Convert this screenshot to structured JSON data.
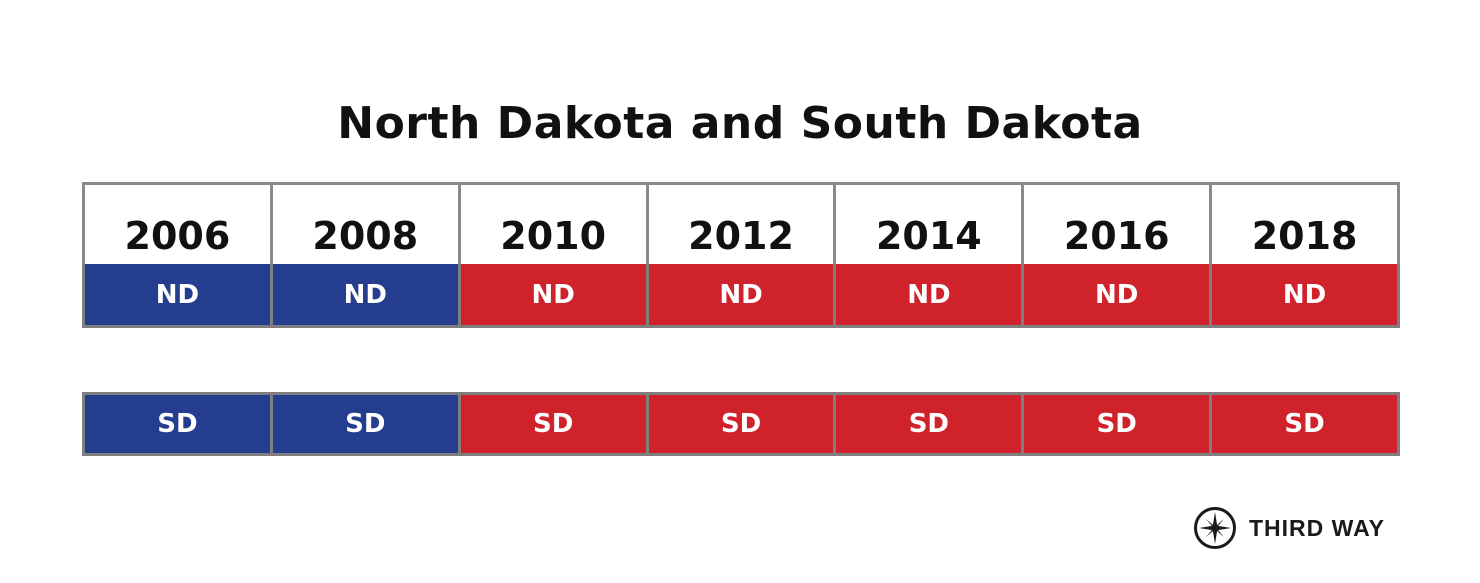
{
  "chart_data": {
    "type": "table",
    "title": "North Dakota and South Dakota",
    "columns": [
      "2006",
      "2008",
      "2010",
      "2012",
      "2014",
      "2016",
      "2018"
    ],
    "rows": [
      {
        "label": "ND",
        "cells": [
          "ND",
          "ND",
          "ND",
          "ND",
          "ND",
          "ND",
          "ND"
        ],
        "parties": [
          "D",
          "D",
          "R",
          "R",
          "R",
          "R",
          "R"
        ]
      },
      {
        "label": "SD",
        "cells": [
          "SD",
          "SD",
          "SD",
          "SD",
          "SD",
          "SD",
          "SD"
        ],
        "parties": [
          "D",
          "D",
          "R",
          "R",
          "R",
          "R",
          "R"
        ]
      }
    ],
    "colors": {
      "D": "#253D8E",
      "R": "#D0222A"
    }
  },
  "logo": {
    "text": "THIRD WAY",
    "icon": "compass-star-icon"
  }
}
